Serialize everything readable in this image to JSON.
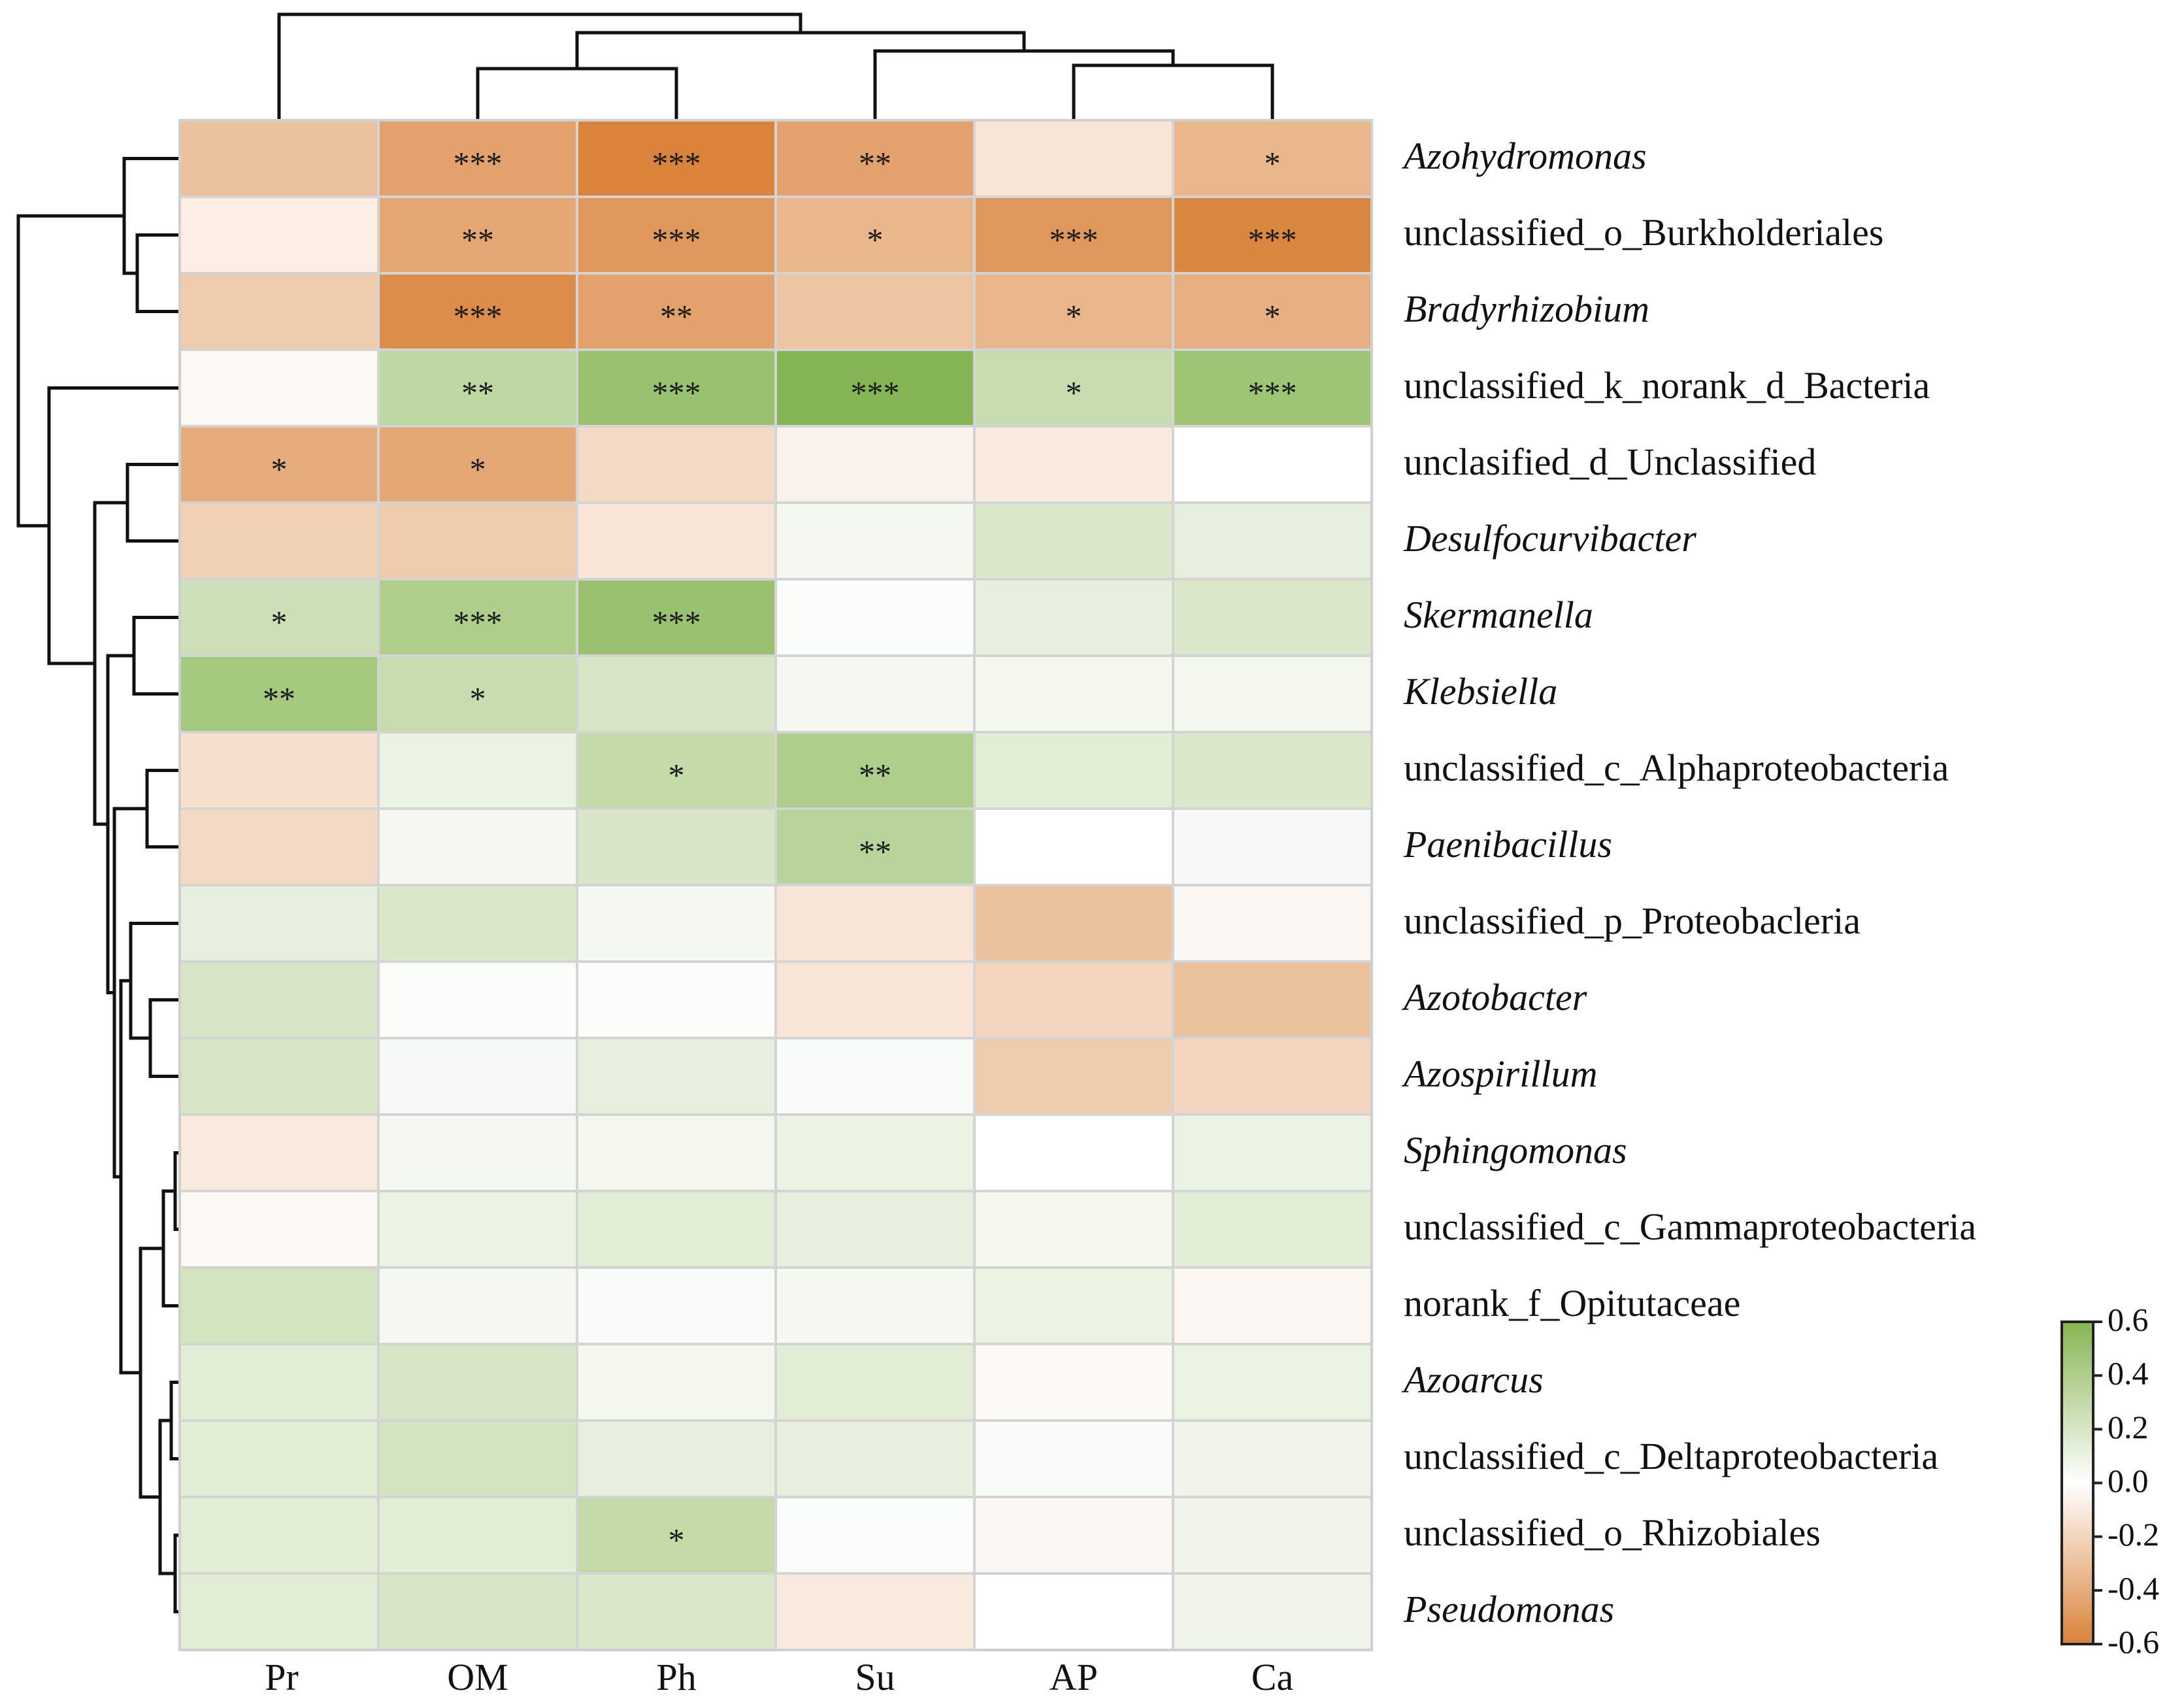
{
  "chart_data": {
    "type": "heatmap",
    "columns": [
      "Pr",
      "OM",
      "Ph",
      "Su",
      "AP",
      "Ca"
    ],
    "rows": [
      {
        "label": "Azohydromonas",
        "italic": true,
        "values": [
          -0.3,
          -0.45,
          -0.6,
          -0.45,
          -0.12,
          -0.35
        ],
        "sig": [
          "",
          "***",
          "***",
          "**",
          "",
          "*"
        ]
      },
      {
        "label": "unclassified_o_Burkholderiales",
        "italic": false,
        "values": [
          -0.08,
          -0.42,
          -0.5,
          -0.35,
          -0.5,
          -0.58
        ],
        "sig": [
          "",
          "**",
          "***",
          "*",
          "***",
          "***"
        ]
      },
      {
        "label": "Bradyrhizobium",
        "italic": true,
        "values": [
          -0.25,
          -0.55,
          -0.45,
          -0.28,
          -0.35,
          -0.38
        ],
        "sig": [
          "",
          "***",
          "**",
          "",
          "*",
          "*"
        ]
      },
      {
        "label": "unclassified_k_norank_d_Bacteria",
        "italic": false,
        "values": [
          -0.03,
          0.32,
          0.5,
          0.62,
          0.28,
          0.48
        ],
        "sig": [
          "",
          "**",
          "***",
          "***",
          "*",
          "***"
        ]
      },
      {
        "label": "unclasified_d_Unclassified",
        "italic": false,
        "values": [
          -0.4,
          -0.42,
          -0.18,
          -0.06,
          -0.1,
          0.0
        ],
        "sig": [
          "*",
          "*",
          "",
          "",
          "",
          ""
        ]
      },
      {
        "label": "Desulfocurvibacter",
        "italic": true,
        "values": [
          -0.22,
          -0.25,
          -0.12,
          0.05,
          0.18,
          0.12
        ],
        "sig": [
          "",
          "",
          "",
          "",
          "",
          ""
        ]
      },
      {
        "label": "Skermanella",
        "italic": true,
        "values": [
          0.25,
          0.4,
          0.5,
          0.02,
          0.12,
          0.18
        ],
        "sig": [
          "*",
          "***",
          "***",
          "",
          "",
          ""
        ]
      },
      {
        "label": "Klebsiella",
        "italic": true,
        "values": [
          0.45,
          0.28,
          0.2,
          0.05,
          0.06,
          0.06
        ],
        "sig": [
          "**",
          "*",
          "",
          "",
          "",
          ""
        ]
      },
      {
        "label": "unclassified_c_Alphaproteobacteria",
        "italic": false,
        "values": [
          -0.15,
          0.1,
          0.3,
          0.4,
          0.15,
          0.18
        ],
        "sig": [
          "",
          "",
          "*",
          "**",
          "",
          ""
        ]
      },
      {
        "label": "Paenibacillus",
        "italic": true,
        "values": [
          -0.18,
          0.05,
          0.2,
          0.35,
          0.0,
          0.04
        ],
        "sig": [
          "",
          "",
          "",
          "**",
          "",
          ""
        ]
      },
      {
        "label": "unclassified_p_Proteobacleria",
        "italic": false,
        "values": [
          0.12,
          0.18,
          0.05,
          -0.12,
          -0.3,
          -0.04
        ],
        "sig": [
          "",
          "",
          "",
          "",
          "",
          ""
        ]
      },
      {
        "label": "Azotobacter",
        "italic": true,
        "values": [
          0.2,
          0.02,
          0.02,
          -0.12,
          -0.2,
          -0.3
        ],
        "sig": [
          "",
          "",
          "",
          "",
          "",
          ""
        ]
      },
      {
        "label": "Azospirillum",
        "italic": true,
        "values": [
          0.2,
          0.04,
          0.12,
          0.03,
          -0.25,
          -0.2
        ],
        "sig": [
          "",
          "",
          "",
          "",
          "",
          ""
        ]
      },
      {
        "label": "Sphingomonas",
        "italic": true,
        "values": [
          -0.1,
          0.05,
          0.06,
          0.1,
          0.0,
          0.1
        ],
        "sig": [
          "",
          "",
          "",
          "",
          "",
          ""
        ]
      },
      {
        "label": "unclassified_c_Gammaproteobacteria",
        "italic": false,
        "values": [
          -0.03,
          0.1,
          0.15,
          0.12,
          0.06,
          0.15
        ],
        "sig": [
          "",
          "",
          "",
          "",
          "",
          ""
        ]
      },
      {
        "label": "norank_f_Opitutaceae",
        "italic": false,
        "values": [
          0.22,
          0.05,
          0.03,
          0.05,
          0.1,
          -0.04
        ],
        "sig": [
          "",
          "",
          "",
          "",
          "",
          ""
        ]
      },
      {
        "label": "Azoarcus",
        "italic": true,
        "values": [
          0.15,
          0.2,
          0.06,
          0.15,
          -0.03,
          0.1
        ],
        "sig": [
          "",
          "",
          "",
          "",
          "",
          ""
        ]
      },
      {
        "label": "unclassified_c_Deltaproteobacteria",
        "italic": false,
        "values": [
          0.15,
          0.22,
          0.12,
          0.12,
          0.03,
          0.08
        ],
        "sig": [
          "",
          "",
          "",
          "",
          "",
          ""
        ]
      },
      {
        "label": "unclassified_o_Rhizobiales",
        "italic": false,
        "values": [
          0.15,
          0.15,
          0.3,
          0.02,
          -0.04,
          0.08
        ],
        "sig": [
          "",
          "",
          "*",
          "",
          "",
          ""
        ]
      },
      {
        "label": "Pseudomonas",
        "italic": true,
        "values": [
          0.15,
          0.2,
          0.18,
          -0.1,
          0.0,
          0.08
        ],
        "sig": [
          "",
          "",
          "",
          "",
          "",
          ""
        ]
      }
    ],
    "colorbar": {
      "min": -0.6,
      "max": 0.6,
      "ticks": [
        "0.6",
        "0.4",
        "0.2",
        "0.0",
        "-0.2",
        "-0.4",
        "-0.6"
      ],
      "low_color": "#d9833a",
      "mid_color": "#ffffff",
      "high_color": "#86b553"
    },
    "grid": true
  }
}
